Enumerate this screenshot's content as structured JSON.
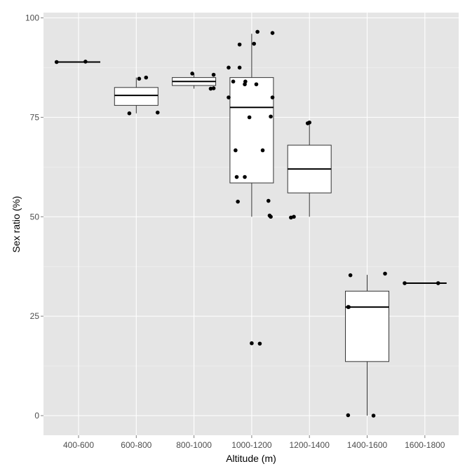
{
  "chart_data": {
    "type": "box",
    "title": "",
    "xlabel": "Altitude (m)",
    "ylabel": "Sex ratio (%)",
    "ylim": [
      -5,
      101
    ],
    "yticks": [
      0,
      25,
      50,
      75,
      100
    ],
    "grid": true,
    "background": "#e5e5e5",
    "categories": [
      "400-600",
      "600-800",
      "800-1000",
      "1000-1200",
      "1200-1400",
      "1400-1600",
      "1600-1800"
    ],
    "boxes": [
      {
        "category": "400-600",
        "q1": 88.9,
        "median": 88.9,
        "q3": 88.9,
        "whisker_low": 88.9,
        "whisker_high": 88.9
      },
      {
        "category": "600-800",
        "q1": 78,
        "median": 80.5,
        "q3": 82.5,
        "whisker_low": 76,
        "whisker_high": 85
      },
      {
        "category": "800-1000",
        "q1": 83,
        "median": 84,
        "q3": 85,
        "whisker_low": 82.2,
        "whisker_high": 86
      },
      {
        "category": "1000-1200",
        "q1": 58.5,
        "median": 77.5,
        "q3": 85,
        "whisker_low": 50,
        "whisker_high": 96
      },
      {
        "category": "1200-1400",
        "q1": 56,
        "median": 62,
        "q3": 68,
        "whisker_low": 50,
        "whisker_high": 73.7
      },
      {
        "category": "1400-1600",
        "q1": 13.6,
        "median": 27.3,
        "q3": 31.3,
        "whisker_low": 0,
        "whisker_high": 35.4
      },
      {
        "category": "1600-1800",
        "q1": 33.3,
        "median": 33.3,
        "q3": 33.3,
        "whisker_low": 33.3,
        "whisker_high": 33.3
      }
    ],
    "points": [
      {
        "category": "400-600",
        "jitter": -0.38,
        "y": 88.9
      },
      {
        "category": "400-600",
        "jitter": 0.12,
        "y": 89.0
      },
      {
        "category": "600-800",
        "jitter": -0.12,
        "y": 76.0
      },
      {
        "category": "600-800",
        "jitter": 0.05,
        "y": 84.7
      },
      {
        "category": "600-800",
        "jitter": 0.17,
        "y": 85.0
      },
      {
        "category": "600-800",
        "jitter": 0.37,
        "y": 76.2
      },
      {
        "category": "800-1000",
        "jitter": -0.03,
        "y": 86.0
      },
      {
        "category": "800-1000",
        "jitter": 0.29,
        "y": 82.2
      },
      {
        "category": "800-1000",
        "jitter": 0.34,
        "y": 82.3
      },
      {
        "category": "800-1000",
        "jitter": 0.34,
        "y": 85.7
      },
      {
        "category": "1000-1200",
        "jitter": -0.4,
        "y": 87.5
      },
      {
        "category": "1000-1200",
        "jitter": -0.4,
        "y": 80.0
      },
      {
        "category": "1000-1200",
        "jitter": -0.32,
        "y": 84.0
      },
      {
        "category": "1000-1200",
        "jitter": -0.28,
        "y": 66.7
      },
      {
        "category": "1000-1200",
        "jitter": -0.26,
        "y": 60.0
      },
      {
        "category": "1000-1200",
        "jitter": -0.24,
        "y": 53.8
      },
      {
        "category": "1000-1200",
        "jitter": -0.21,
        "y": 93.3
      },
      {
        "category": "1000-1200",
        "jitter": -0.21,
        "y": 87.5
      },
      {
        "category": "1000-1200",
        "jitter": -0.12,
        "y": 60.0
      },
      {
        "category": "1000-1200",
        "jitter": -0.12,
        "y": 83.3
      },
      {
        "category": "1000-1200",
        "jitter": -0.11,
        "y": 84.0
      },
      {
        "category": "1000-1200",
        "jitter": -0.04,
        "y": 75.0
      },
      {
        "category": "1000-1200",
        "jitter": 0.0,
        "y": 18.2
      },
      {
        "category": "1000-1200",
        "jitter": 0.04,
        "y": 93.5
      },
      {
        "category": "1000-1200",
        "jitter": 0.08,
        "y": 83.3
      },
      {
        "category": "1000-1200",
        "jitter": 0.1,
        "y": 96.5
      },
      {
        "category": "1000-1200",
        "jitter": 0.14,
        "y": 18.1
      },
      {
        "category": "1000-1200",
        "jitter": 0.19,
        "y": 66.7
      },
      {
        "category": "1000-1200",
        "jitter": 0.29,
        "y": 54.0
      },
      {
        "category": "1000-1200",
        "jitter": 0.31,
        "y": 50.3
      },
      {
        "category": "1000-1200",
        "jitter": 0.33,
        "y": 50.0
      },
      {
        "category": "1000-1200",
        "jitter": 0.33,
        "y": 75.2
      },
      {
        "category": "1000-1200",
        "jitter": 0.36,
        "y": 80.0
      },
      {
        "category": "1000-1200",
        "jitter": 0.36,
        "y": 96.2
      },
      {
        "category": "1200-1400",
        "jitter": -0.32,
        "y": 49.8
      },
      {
        "category": "1200-1400",
        "jitter": -0.27,
        "y": 50.0
      },
      {
        "category": "1200-1400",
        "jitter": -0.03,
        "y": 73.5
      },
      {
        "category": "1200-1400",
        "jitter": 0.0,
        "y": 73.7
      },
      {
        "category": "1400-1600",
        "jitter": -0.33,
        "y": 0.1
      },
      {
        "category": "1400-1600",
        "jitter": -0.33,
        "y": 27.3
      },
      {
        "category": "1400-1600",
        "jitter": -0.32,
        "y": 27.3
      },
      {
        "category": "1400-1600",
        "jitter": -0.29,
        "y": 35.3
      },
      {
        "category": "1400-1600",
        "jitter": 0.11,
        "y": 0.0
      },
      {
        "category": "1400-1600",
        "jitter": 0.31,
        "y": 35.7
      },
      {
        "category": "1600-1800",
        "jitter": -0.35,
        "y": 33.3
      },
      {
        "category": "1600-1800",
        "jitter": 0.23,
        "y": 33.3
      }
    ]
  }
}
